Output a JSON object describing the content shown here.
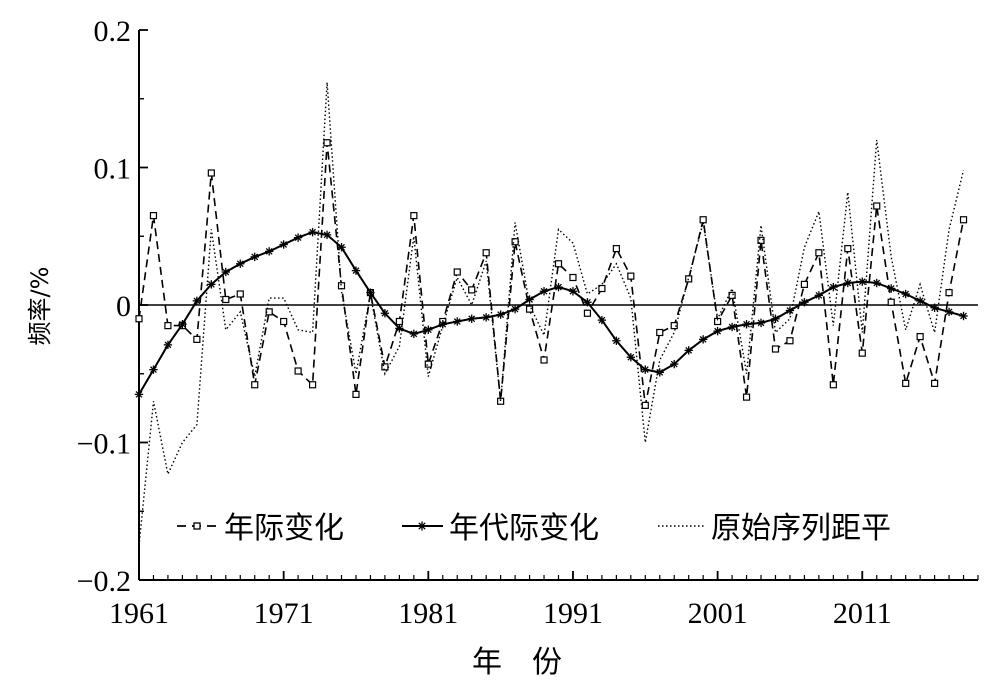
{
  "chart_data": {
    "type": "line",
    "title": "",
    "xlabel": "年　份",
    "ylabel": "频率/%",
    "xlim": [
      1961,
      2019
    ],
    "ylim": [
      -0.2,
      0.2
    ],
    "x_ticks": [
      1961,
      1971,
      1981,
      1991,
      2001,
      2011
    ],
    "y_ticks": [
      {
        "value": 0.2,
        "label": "0.2"
      },
      {
        "value": 0.1,
        "label": "0.1"
      },
      {
        "value": 0,
        "label": "0"
      },
      {
        "value": -0.1,
        "label": "−0.1"
      },
      {
        "value": -0.2,
        "label": "−0.2"
      }
    ],
    "zero_line": true,
    "grid": false,
    "legend_position": "bottom-left",
    "series": [
      {
        "name": "年际变化",
        "style": "dashed-square",
        "color": "#000000",
        "x": [
          1961,
          1962,
          1963,
          1964,
          1965,
          1966,
          1967,
          1968,
          1969,
          1970,
          1971,
          1972,
          1973,
          1974,
          1975,
          1976,
          1977,
          1978,
          1979,
          1980,
          1981,
          1982,
          1983,
          1984,
          1985,
          1986,
          1987,
          1988,
          1989,
          1990,
          1991,
          1992,
          1993,
          1994,
          1995,
          1996,
          1997,
          1998,
          1999,
          2000,
          2001,
          2002,
          2003,
          2004,
          2005,
          2006,
          2007,
          2008,
          2009,
          2010,
          2011,
          2012,
          2013,
          2014,
          2015,
          2016,
          2017,
          2018,
          2019
        ],
        "y": [
          -0.01,
          0.065,
          -0.015,
          -0.015,
          -0.025,
          0.096,
          0.004,
          0.008,
          -0.058,
          -0.005,
          -0.012,
          -0.048,
          -0.058,
          0.118,
          0.014,
          -0.065,
          0.009,
          -0.045,
          -0.012,
          0.065,
          -0.043,
          -0.012,
          0.024,
          0.011,
          0.038,
          -0.07,
          0.046,
          -0.003,
          -0.04,
          0.03,
          0.02,
          -0.006,
          0.012,
          0.041,
          0.021,
          -0.073,
          -0.02,
          -0.015,
          0.019,
          0.062,
          -0.012,
          0.007,
          -0.067,
          0.047,
          -0.032,
          -0.026,
          0.015,
          0.038,
          -0.058,
          0.041,
          -0.035,
          0.072,
          0.002,
          -0.057,
          -0.023,
          -0.057,
          0.009,
          0.062,
          null
        ]
      },
      {
        "name": "年代际变化",
        "style": "solid-star",
        "color": "#000000",
        "x": [
          1961,
          1962,
          1963,
          1964,
          1965,
          1966,
          1967,
          1968,
          1969,
          1970,
          1971,
          1972,
          1973,
          1974,
          1975,
          1976,
          1977,
          1978,
          1979,
          1980,
          1981,
          1982,
          1983,
          1984,
          1985,
          1986,
          1987,
          1988,
          1989,
          1990,
          1991,
          1992,
          1993,
          1994,
          1995,
          1996,
          1997,
          1998,
          1999,
          2000,
          2001,
          2002,
          2003,
          2004,
          2005,
          2006,
          2007,
          2008,
          2009,
          2010,
          2011,
          2012,
          2013,
          2014,
          2015,
          2016,
          2017,
          2018,
          2019
        ],
        "y": [
          -0.065,
          -0.047,
          -0.029,
          -0.014,
          0.003,
          0.015,
          0.024,
          0.03,
          0.035,
          0.039,
          0.044,
          0.049,
          0.053,
          0.051,
          0.042,
          0.025,
          0.009,
          -0.006,
          -0.017,
          -0.021,
          -0.018,
          -0.014,
          -0.012,
          -0.01,
          -0.009,
          -0.007,
          -0.003,
          0.004,
          0.01,
          0.013,
          0.01,
          0.002,
          -0.011,
          -0.026,
          -0.038,
          -0.047,
          -0.049,
          -0.043,
          -0.033,
          -0.025,
          -0.019,
          -0.016,
          -0.014,
          -0.013,
          -0.01,
          -0.004,
          0.002,
          0.007,
          0.013,
          0.016,
          0.017,
          0.016,
          0.012,
          0.008,
          0.003,
          -0.002,
          -0.005,
          -0.008,
          null
        ]
      },
      {
        "name": "原始序列距平",
        "style": "dotted",
        "color": "#000000",
        "x": [
          1961,
          1962,
          1963,
          1964,
          1965,
          1966,
          1967,
          1968,
          1969,
          1970,
          1971,
          1972,
          1973,
          1974,
          1975,
          1976,
          1977,
          1978,
          1979,
          1980,
          1981,
          1982,
          1983,
          1984,
          1985,
          1986,
          1987,
          1988,
          1989,
          1990,
          1991,
          1992,
          1993,
          1994,
          1995,
          1996,
          1997,
          1998,
          1999,
          2000,
          2001,
          2002,
          2003,
          2004,
          2005,
          2006,
          2007,
          2008,
          2009,
          2010,
          2011,
          2012,
          2013,
          2014,
          2015,
          2016,
          2017,
          2018,
          2019
        ],
        "y": [
          -0.175,
          -0.07,
          -0.123,
          -0.1,
          -0.087,
          0.055,
          -0.018,
          -0.005,
          -0.052,
          0.005,
          0.005,
          -0.018,
          -0.02,
          0.162,
          0.01,
          -0.05,
          0.008,
          -0.05,
          -0.03,
          0.05,
          -0.052,
          -0.015,
          0.02,
          0,
          0.032,
          -0.07,
          0.06,
          0,
          -0.022,
          0.055,
          0.045,
          0.008,
          0.015,
          0.03,
          0.005,
          -0.1,
          -0.04,
          -0.02,
          0.02,
          0.06,
          -0.01,
          0.012,
          -0.05,
          0.058,
          -0.02,
          -0.01,
          0.042,
          0.068,
          -0.015,
          0.082,
          -0.02,
          0.12,
          0.035,
          -0.018,
          0.015,
          -0.02,
          0.055,
          0.098,
          null
        ]
      }
    ]
  }
}
